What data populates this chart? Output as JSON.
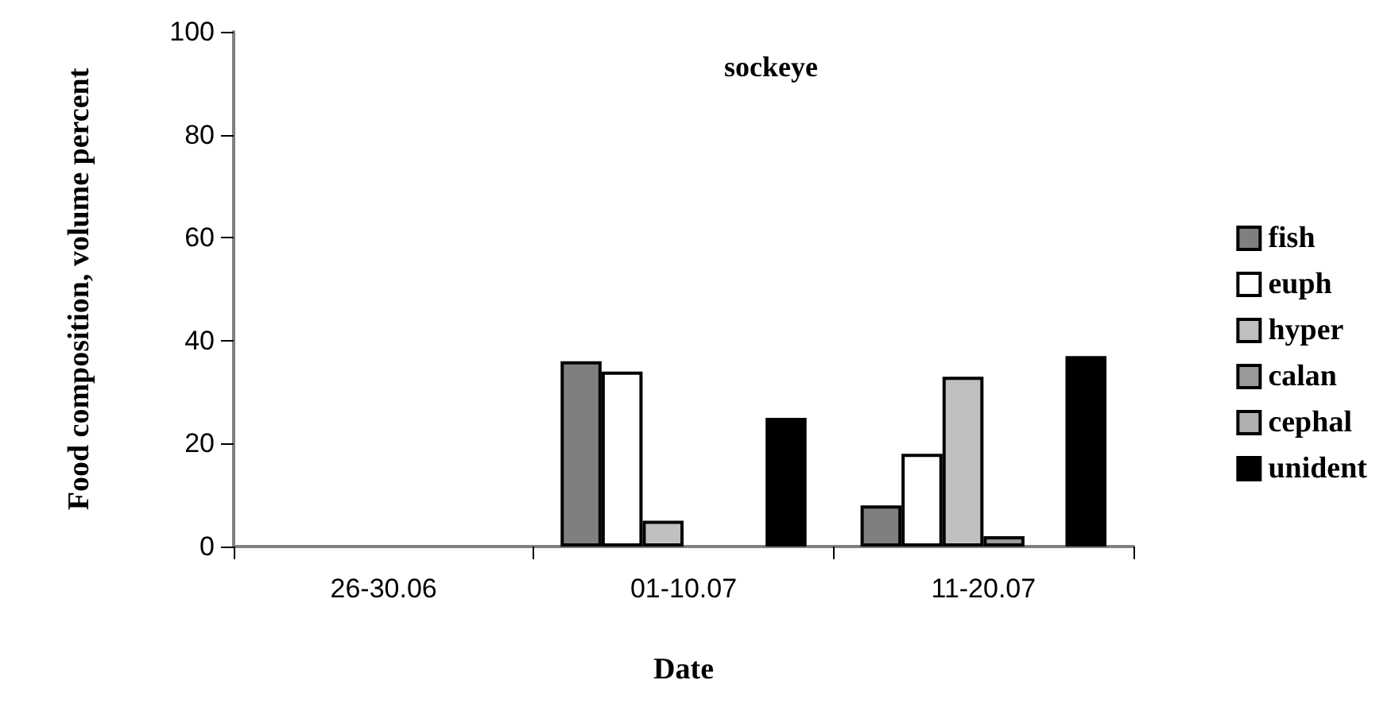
{
  "chart_data": {
    "type": "bar",
    "title": "sockeye",
    "xlabel": "Date",
    "ylabel": "Food composition, volume percent",
    "categories": [
      "26-30.06",
      "01-10.07",
      "11-20.07"
    ],
    "series": [
      {
        "name": "fish",
        "color": "#7f7f7f",
        "values": [
          null,
          36,
          8
        ]
      },
      {
        "name": "euph",
        "color": "#ffffff",
        "values": [
          null,
          34,
          18
        ]
      },
      {
        "name": "hyper",
        "color": "#c0c0c0",
        "values": [
          null,
          5,
          33
        ]
      },
      {
        "name": "calan",
        "color": "#999999",
        "values": [
          null,
          null,
          2
        ]
      },
      {
        "name": "cephal",
        "color": "#b0b0b0",
        "values": [
          null,
          null,
          null
        ]
      },
      {
        "name": "unident",
        "color": "#000000",
        "values": [
          null,
          25,
          37
        ]
      }
    ],
    "ylim": [
      0,
      100
    ],
    "yticks": [
      0,
      20,
      40,
      60,
      80,
      100
    ],
    "grid": false,
    "legend": "right"
  }
}
